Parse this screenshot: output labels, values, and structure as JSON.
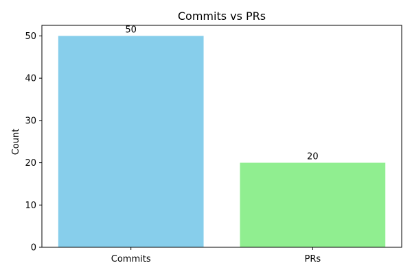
{
  "chart_data": {
    "type": "bar",
    "title": "Commits vs PRs",
    "xlabel": "",
    "ylabel": "Count",
    "categories": [
      "Commits",
      "PRs"
    ],
    "values": [
      50,
      20
    ],
    "data_labels": [
      "50",
      "20"
    ],
    "colors": [
      "#87CEEB",
      "#90EE90"
    ],
    "ylim": [
      0,
      52.5
    ],
    "yticks": [
      0,
      10,
      20,
      30,
      40,
      50
    ],
    "ytick_labels": [
      "0",
      "10",
      "20",
      "30",
      "40",
      "50"
    ],
    "grid": false,
    "legend": "none"
  }
}
